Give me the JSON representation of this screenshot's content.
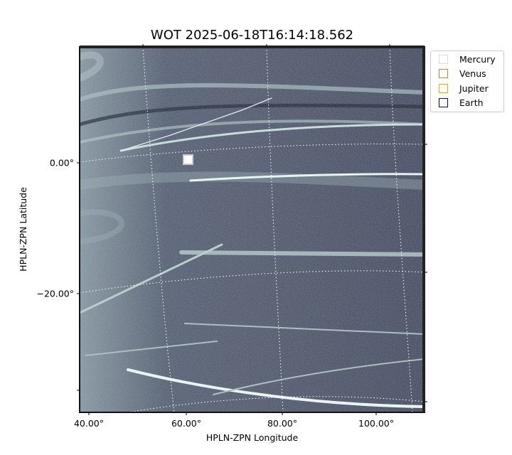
{
  "chart_data": {
    "type": "heatmap",
    "title": "WOT 2025-06-18T16:14:18.562",
    "xlabel": "HPLN-ZPN Longitude",
    "ylabel": "HPLN-ZPN Latitude",
    "x_ticks": [
      "40.00°",
      "60.00°",
      "80.00°",
      "100.00°"
    ],
    "y_ticks": [
      "0.00°",
      "−20.00°"
    ],
    "grid": true,
    "colormap": "bone",
    "legend_position": "outside-top-right",
    "legend": [
      {
        "label": "Mercury",
        "color": "#dddddd"
      },
      {
        "label": "Venus",
        "color": "#cd853f"
      },
      {
        "label": "Jupiter",
        "color": "#ffa500"
      },
      {
        "label": "Earth",
        "color": "#0000ff"
      }
    ]
  }
}
